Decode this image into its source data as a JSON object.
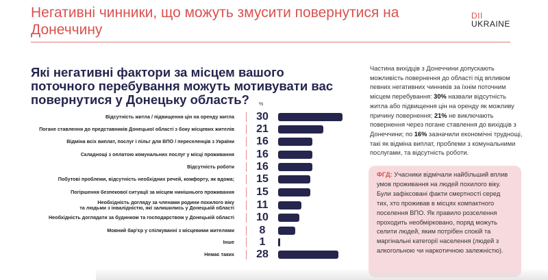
{
  "header": {
    "title": "Негативні чинники, що можуть змусити повернутися на Донеччину",
    "logo_top": "DII",
    "logo_bottom": "UKRAINE"
  },
  "chart_data": {
    "type": "bar",
    "orientation": "horizontal",
    "title": "Які негативні фактори за місцем вашого поточного перебування можуть мотивувати вас повернутися у Донецьку область?",
    "unit_label": "%",
    "categories": [
      "Відсутність житла / підвищення цін на оренду житла",
      "Погане ставлення до представників Донецької області з боку місцевих жителів",
      "Відміна всіх виплат, послуг і пільг для ВПО / переселенців з України",
      "Складнощі з оплатою комунальних послуг у місці проживання",
      "Відсутність роботи",
      "Побутові проблеми, відсутність необхідних речей, комфорту, як вдома;",
      "Погіршення безпекової ситуації за місцем нинішнього проживання",
      "Необхідність догляду за членами родини похилого віку та людьми з інвалідністю, які залишились у Донецькій області",
      "Необхідність доглядати за будинком та господарством у Донецькій області",
      "Мовний бар'єр у спілкуванні з місцевими жителями",
      "Інше",
      "Немає таких"
    ],
    "values": [
      30,
      21,
      16,
      16,
      16,
      15,
      15,
      11,
      10,
      8,
      1,
      28
    ],
    "bar_color": "#25254d"
  },
  "summary": {
    "parts": [
      "Частина вихідців з Донеччини допускають можливість повернення до області під впливом певних негативних чинників за їхнім поточним місцем перебування: ",
      "30%",
      " назвали відсутність житла або підвищення цін на оренду як можливу причину повернення; ",
      "21%",
      " не виключають повернення через погане ставлення до вихідців з Донеччини; по ",
      "16%",
      " зазначили економічні труднощі, такі як відміна виплат, проблеми з комунальними послугами, та відсутність роботи."
    ]
  },
  "fgd": {
    "label": "ФГД:",
    "text": " Учасники відмічали найбільший вплив умов проживання на людей похилого віку. Були зафіксовані факти смертності серед тих, хто проживав в місцях компактного поселення ВПО. Як правило розселення проходить необмірковано, поряд можуть селити людей, яким потрібен спокій та маргінальні категорії населення (людей з алкогольною чи наркотичною залежністю)."
  },
  "colors": {
    "accent": "#d9514e",
    "navy": "#25254d",
    "fgd_bg": "#f7dadd"
  }
}
